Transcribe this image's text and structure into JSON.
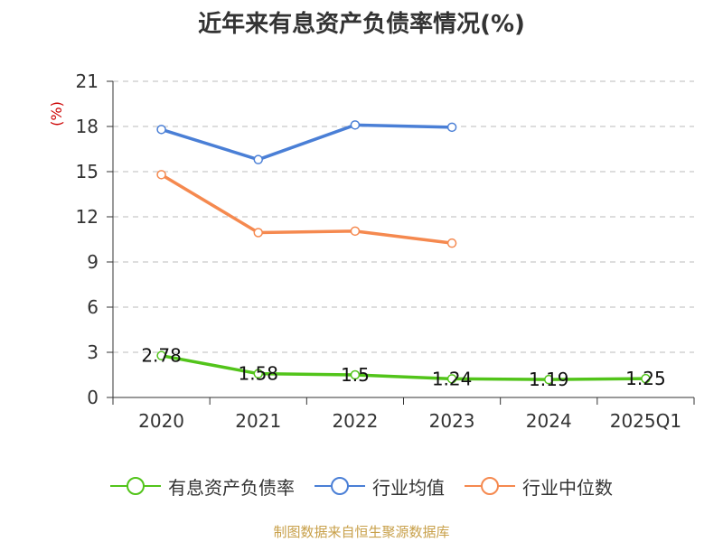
{
  "chart_data": {
    "type": "line",
    "title": "近年来有息资产负债率情况(%)",
    "ylabel": "(%)",
    "xlabel": "",
    "categories": [
      "2020",
      "2021",
      "2022",
      "2023",
      "2024",
      "2025Q1"
    ],
    "ylim": [
      0,
      21
    ],
    "yticks": [
      0,
      3,
      6,
      9,
      12,
      15,
      18,
      21
    ],
    "grid": true,
    "legend_position": "bottom",
    "series": [
      {
        "name": "有息资产负债率",
        "color": "#52c41a",
        "values": [
          2.78,
          1.58,
          1.5,
          1.24,
          1.19,
          1.25
        ],
        "data_labels": [
          "2.78",
          "1.58",
          "1.5",
          "1.24",
          "1.19",
          "1.25"
        ]
      },
      {
        "name": "行业均值",
        "color": "#4a7fd6",
        "values": [
          17.8,
          15.8,
          18.1,
          17.95,
          null,
          null
        ],
        "data_labels": []
      },
      {
        "name": "行业中位数",
        "color": "#f5894f",
        "values": [
          14.8,
          10.95,
          11.05,
          10.25,
          null,
          null
        ],
        "data_labels": []
      }
    ]
  },
  "footer": {
    "source": "制图数据来自恒生聚源数据库"
  }
}
